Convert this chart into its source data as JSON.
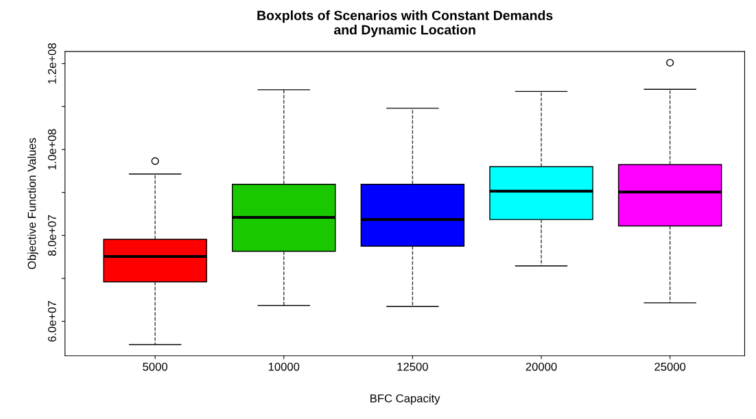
{
  "chart_data": {
    "type": "box",
    "title": "Boxplots of Scenarios with Constant Demands\nand Dynamic Location",
    "xlabel": "BFC Capacity",
    "ylabel": "Objective Function Values",
    "categories": [
      "5000",
      "10000",
      "12500",
      "20000",
      "25000"
    ],
    "colors": [
      "#ff0000",
      "#1ac800",
      "#0000ff",
      "#00ffff",
      "#ff00ff"
    ],
    "boxes": [
      {
        "low": 54600000,
        "q1": 69200000,
        "median": 75100000,
        "q3": 79100000,
        "high": 94300000,
        "outliers": [
          97300000
        ]
      },
      {
        "low": 63700000,
        "q1": 76300000,
        "median": 84200000,
        "q3": 91900000,
        "high": 113900000
      },
      {
        "low": 63500000,
        "q1": 77500000,
        "median": 83700000,
        "q3": 91900000,
        "high": 109600000
      },
      {
        "low": 72900000,
        "q1": 83700000,
        "median": 90300000,
        "q3": 96000000,
        "high": 113500000
      },
      {
        "low": 64300000,
        "q1": 82200000,
        "median": 90100000,
        "q3": 96500000,
        "high": 114000000,
        "outliers": [
          120200000
        ]
      }
    ],
    "ylim": [
      52000000,
      122800000
    ],
    "yticks": [
      {
        "value": 60000000,
        "label": "6.0e+07"
      },
      {
        "value": 70000000,
        "label": null
      },
      {
        "value": 80000000,
        "label": "8.0e+07"
      },
      {
        "value": 90000000,
        "label": null
      },
      {
        "value": 100000000,
        "label": "1.0e+08"
      },
      {
        "value": 110000000,
        "label": null
      },
      {
        "value": 120000000,
        "label": "1.2e+08"
      }
    ],
    "grid": false
  }
}
